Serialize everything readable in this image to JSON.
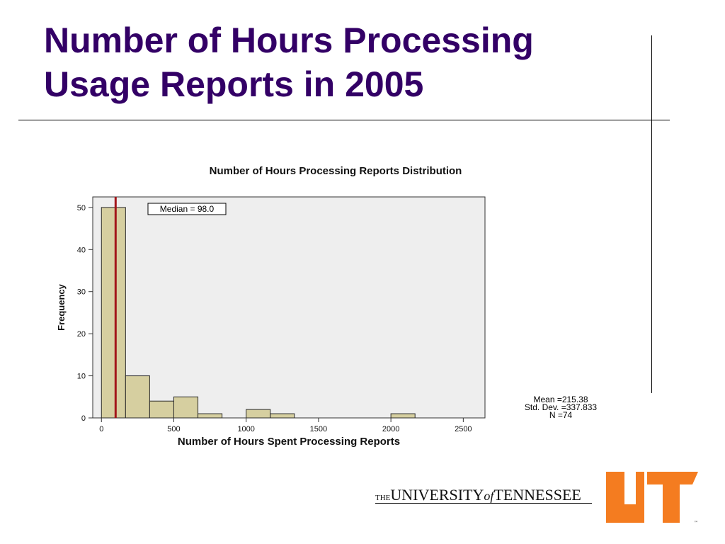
{
  "slide": {
    "title_line1": "Number of Hours Processing",
    "title_line2": "Usage Reports in 2005"
  },
  "colors": {
    "title": "#330066",
    "bar_fill": "#d6cfa0",
    "bar_stroke": "#2b2b2b",
    "plot_bg": "#eeeeee",
    "median_line": "#a3161a",
    "logo_orange": "#f47c20"
  },
  "chart_data": {
    "type": "bar",
    "title": "Number of Hours Processing Reports Distribution",
    "xlabel": "Number of Hours Spent Processing Reports",
    "ylabel": "Frequency",
    "xlim": [
      -60,
      2650
    ],
    "ylim": [
      0,
      52.5
    ],
    "xticks": [
      0,
      500,
      1000,
      1500,
      2000,
      2500
    ],
    "yticks": [
      0,
      10,
      20,
      30,
      40,
      50
    ],
    "grid": false,
    "bin_width": 166.7,
    "bins": [
      {
        "start": 0,
        "end": 166.7,
        "count": 50
      },
      {
        "start": 166.7,
        "end": 333.3,
        "count": 10
      },
      {
        "start": 333.3,
        "end": 500,
        "count": 4
      },
      {
        "start": 500,
        "end": 666.7,
        "count": 5
      },
      {
        "start": 666.7,
        "end": 833.3,
        "count": 1
      },
      {
        "start": 1000,
        "end": 1166.7,
        "count": 2
      },
      {
        "start": 1166.7,
        "end": 1333.3,
        "count": 1
      },
      {
        "start": 2000,
        "end": 2166.7,
        "count": 1
      }
    ],
    "median": {
      "value": 98.0,
      "label": "Median = 98.0"
    },
    "stats": {
      "mean": "Mean =215.38",
      "std_dev": "Std. Dev. =337.833",
      "n": "N =74"
    }
  },
  "footer": {
    "the": "THE",
    "university": "UNIVERSITY",
    "of": "of",
    "tennessee": "TENNESSEE",
    "tm": "™"
  }
}
